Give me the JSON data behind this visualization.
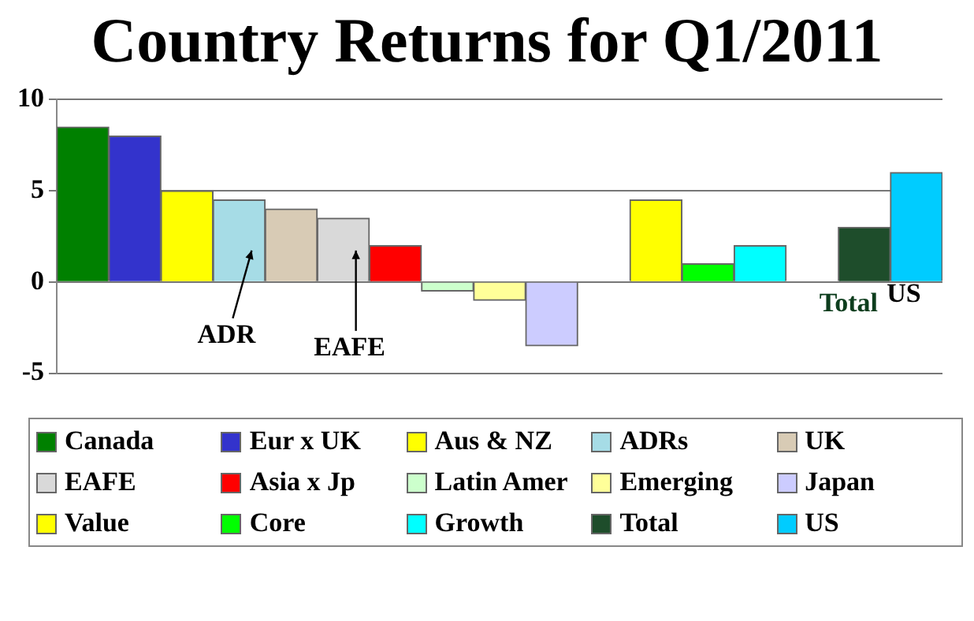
{
  "chart_data": {
    "type": "bar",
    "title": "Country Returns for Q1/2011",
    "categories": [
      null,
      null,
      null,
      null,
      null,
      null,
      null,
      null,
      null,
      null,
      null,
      null,
      null,
      null,
      null,
      null,
      null
    ],
    "series": [
      {
        "name": "Canada",
        "color": "#008000",
        "values": [
          8.5,
          null,
          null,
          null,
          null,
          null,
          null,
          null,
          null,
          null,
          null,
          null,
          null,
          null,
          null,
          null,
          null
        ]
      },
      {
        "name": "Eur x UK",
        "color": "#3333cc",
        "values": [
          null,
          8.0,
          null,
          null,
          null,
          null,
          null,
          null,
          null,
          null,
          null,
          null,
          null,
          null,
          null,
          null,
          null
        ]
      },
      {
        "name": "Aus & NZ",
        "color": "#ffff00",
        "values": [
          null,
          null,
          5.0,
          null,
          null,
          null,
          null,
          null,
          null,
          null,
          null,
          null,
          null,
          null,
          null,
          null,
          null
        ]
      },
      {
        "name": "ADRs",
        "color": "#a6dce6",
        "values": [
          null,
          null,
          null,
          4.5,
          null,
          null,
          null,
          null,
          null,
          null,
          null,
          null,
          null,
          null,
          null,
          null,
          null
        ]
      },
      {
        "name": "UK",
        "color": "#d8cbb5",
        "values": [
          null,
          null,
          null,
          null,
          4.0,
          null,
          null,
          null,
          null,
          null,
          null,
          null,
          null,
          null,
          null,
          null,
          null
        ]
      },
      {
        "name": "EAFE",
        "color": "#d9d9d9",
        "values": [
          null,
          null,
          null,
          null,
          null,
          3.5,
          null,
          null,
          null,
          null,
          null,
          null,
          null,
          null,
          null,
          null,
          null
        ]
      },
      {
        "name": "Asia x Jp",
        "color": "#ff0000",
        "values": [
          null,
          null,
          null,
          null,
          null,
          null,
          2.0,
          null,
          null,
          null,
          null,
          null,
          null,
          null,
          null,
          null,
          null
        ]
      },
      {
        "name": "Latin Amer",
        "color": "#ccffcc",
        "values": [
          null,
          null,
          null,
          null,
          null,
          null,
          null,
          -0.5,
          null,
          null,
          null,
          null,
          null,
          null,
          null,
          null,
          null
        ]
      },
      {
        "name": "Emerging",
        "color": "#ffff99",
        "values": [
          null,
          null,
          null,
          null,
          null,
          null,
          null,
          null,
          -1.0,
          null,
          null,
          null,
          null,
          null,
          null,
          null,
          null
        ]
      },
      {
        "name": "Japan",
        "color": "#ccccff",
        "values": [
          null,
          null,
          null,
          null,
          null,
          null,
          null,
          null,
          null,
          -3.5,
          null,
          null,
          null,
          null,
          null,
          null,
          null
        ]
      },
      {
        "name": "Value",
        "color": "#ffff00",
        "values": [
          null,
          null,
          null,
          null,
          null,
          null,
          null,
          null,
          null,
          null,
          null,
          4.5,
          null,
          null,
          null,
          null,
          null
        ]
      },
      {
        "name": "Core",
        "color": "#00ff00",
        "values": [
          null,
          null,
          null,
          null,
          null,
          null,
          null,
          null,
          null,
          null,
          null,
          null,
          1.0,
          null,
          null,
          null,
          null
        ]
      },
      {
        "name": "Growth",
        "color": "#00ffff",
        "values": [
          null,
          null,
          null,
          null,
          null,
          null,
          null,
          null,
          null,
          null,
          null,
          null,
          null,
          2.0,
          null,
          null,
          null
        ]
      },
      {
        "name": "Total",
        "color": "#1e4d2b",
        "values": [
          null,
          null,
          null,
          null,
          null,
          null,
          null,
          null,
          null,
          null,
          null,
          null,
          null,
          null,
          null,
          3.0,
          null
        ]
      },
      {
        "name": "US",
        "color": "#00ccff",
        "values": [
          null,
          null,
          null,
          null,
          null,
          null,
          null,
          null,
          null,
          null,
          null,
          null,
          null,
          null,
          null,
          null,
          6.0
        ]
      }
    ],
    "ylim": [
      -5,
      10
    ],
    "yticks": [
      -5,
      0,
      5,
      10
    ],
    "grid": "y",
    "legend": "bottom",
    "annotations": [
      "ADR",
      "EAFE",
      "Total",
      "US"
    ]
  }
}
